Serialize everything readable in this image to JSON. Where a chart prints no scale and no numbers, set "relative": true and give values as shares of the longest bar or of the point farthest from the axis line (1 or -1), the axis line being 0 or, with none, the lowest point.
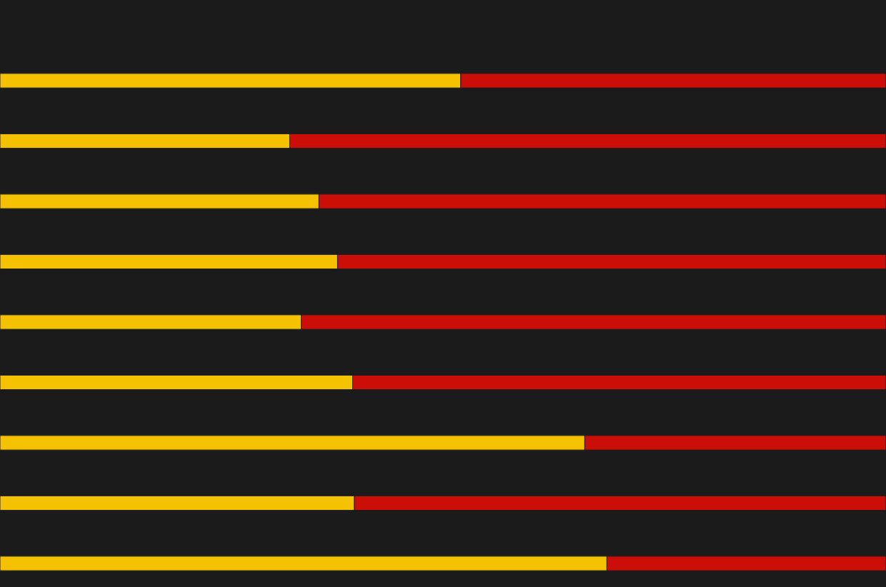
{
  "chart_data": {
    "type": "bar",
    "orientation": "horizontal",
    "stacked": true,
    "relative": true,
    "categories": [
      null,
      null,
      null,
      null,
      null,
      null,
      null,
      null,
      null
    ],
    "series": [
      {
        "color": "#f4c200",
        "values": [
          0.52,
          0.327,
          0.36,
          0.381,
          0.34,
          0.398,
          0.66,
          0.4,
          0.685
        ]
      },
      {
        "color": "#cc0e08",
        "values": [
          0.48,
          0.673,
          0.64,
          0.619,
          0.66,
          0.602,
          0.34,
          0.6,
          0.315
        ]
      }
    ]
  }
}
